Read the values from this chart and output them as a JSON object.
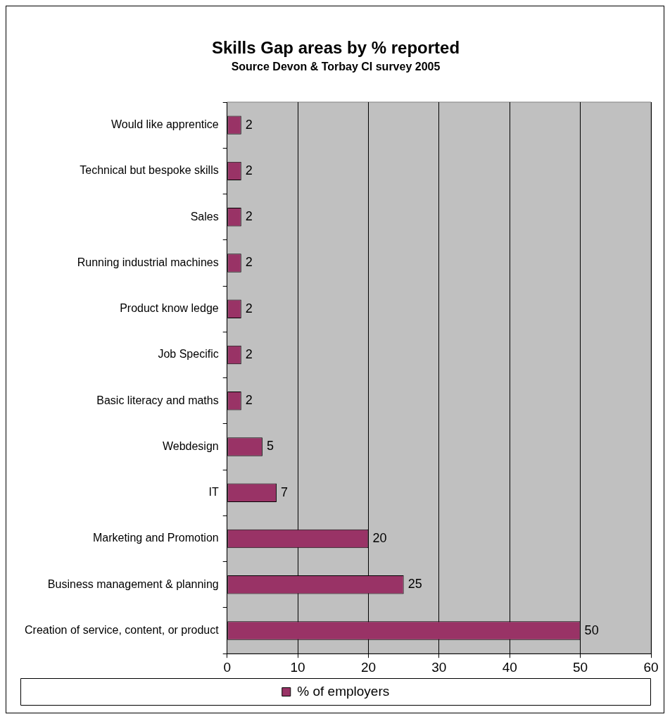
{
  "chart_data": {
    "type": "bar",
    "orientation": "horizontal",
    "title": "Skills Gap areas by % reported",
    "subtitle": "Source Devon & Torbay CI survey 2005",
    "categories": [
      "Would like apprentice",
      "Technical but bespoke skills",
      "Sales",
      "Running industrial machines",
      "Product know ledge",
      "Job Specific",
      "Basic literacy and maths",
      "Webdesign",
      "IT",
      "Marketing and Promotion",
      "Business management & planning",
      "Creation of service, content, or product"
    ],
    "series": [
      {
        "name": "% of employers",
        "color": "#993366",
        "values": [
          2,
          2,
          2,
          2,
          2,
          2,
          2,
          5,
          7,
          20,
          25,
          50
        ]
      }
    ],
    "xlim": [
      0,
      60
    ],
    "xticks": [
      0,
      10,
      20,
      30,
      40,
      50,
      60
    ],
    "grid": "x",
    "legend": "bottom",
    "data_labels": true
  }
}
